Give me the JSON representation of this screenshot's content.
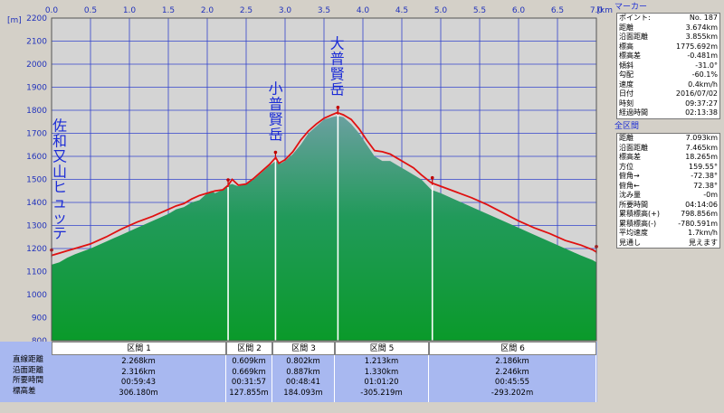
{
  "chart_data": {
    "type": "area",
    "xlabel": "[km]",
    "ylabel": "[m]",
    "xlim": [
      0,
      7.0
    ],
    "ylim": [
      800,
      2200
    ],
    "x_ticks": [
      "0.0",
      "0.5",
      "1.0",
      "1.5",
      "2.0",
      "2.5",
      "3.0",
      "3.5",
      "4.0",
      "4.5",
      "5.0",
      "5.5",
      "6.0",
      "6.5",
      "7.0"
    ],
    "y_ticks": [
      "800",
      "900",
      "1000",
      "1100",
      "1200",
      "1300",
      "1400",
      "1500",
      "1600",
      "1700",
      "1800",
      "1900",
      "2000",
      "2100",
      "2200"
    ],
    "grid": true,
    "series": [
      {
        "type": "area",
        "x": [
          0.0,
          0.1,
          0.2,
          0.3,
          0.5,
          0.7,
          0.9,
          1.1,
          1.3,
          1.5,
          1.6,
          1.7,
          1.8,
          1.9,
          2.0,
          2.05,
          2.1,
          2.2,
          2.27,
          2.32,
          2.4,
          2.5,
          2.6,
          2.7,
          2.8,
          2.88,
          2.95,
          3.0,
          3.1,
          3.2,
          3.3,
          3.4,
          3.5,
          3.6,
          3.67,
          3.75,
          3.85,
          3.95,
          4.05,
          4.15,
          4.25,
          4.35,
          4.45,
          4.55,
          4.65,
          4.75,
          4.88,
          5.0,
          5.2,
          5.4,
          5.6,
          5.8,
          6.0,
          6.2,
          6.4,
          6.6,
          6.8,
          6.95,
          7.0
        ],
        "y": [
          1130,
          1140,
          1160,
          1175,
          1200,
          1230,
          1260,
          1290,
          1320,
          1350,
          1370,
          1380,
          1400,
          1410,
          1440,
          1450,
          1440,
          1455,
          1475,
          1480,
          1470,
          1480,
          1500,
          1530,
          1560,
          1580,
          1570,
          1580,
          1610,
          1650,
          1700,
          1730,
          1760,
          1770,
          1775,
          1770,
          1740,
          1700,
          1650,
          1600,
          1580,
          1580,
          1560,
          1540,
          1520,
          1500,
          1455,
          1440,
          1410,
          1380,
          1350,
          1320,
          1290,
          1260,
          1230,
          1200,
          1170,
          1150,
          1140
        ]
      },
      {
        "type": "line",
        "color": "#e01010",
        "x": [
          0.0,
          0.1,
          0.2,
          0.3,
          0.5,
          0.7,
          0.9,
          1.1,
          1.3,
          1.5,
          1.6,
          1.7,
          1.8,
          1.9,
          2.0,
          2.1,
          2.2,
          2.27,
          2.32,
          2.4,
          2.5,
          2.6,
          2.7,
          2.8,
          2.88,
          2.92,
          3.0,
          3.1,
          3.2,
          3.3,
          3.4,
          3.5,
          3.6,
          3.67,
          3.75,
          3.85,
          3.95,
          4.05,
          4.15,
          4.25,
          4.35,
          4.45,
          4.55,
          4.65,
          4.75,
          4.88,
          5.0,
          5.2,
          5.4,
          5.6,
          5.8,
          6.0,
          6.2,
          6.4,
          6.6,
          6.8,
          6.95,
          7.0
        ],
        "y": [
          1170,
          1180,
          1190,
          1200,
          1220,
          1250,
          1285,
          1315,
          1340,
          1370,
          1385,
          1395,
          1415,
          1430,
          1440,
          1450,
          1455,
          1475,
          1500,
          1475,
          1480,
          1505,
          1535,
          1565,
          1595,
          1570,
          1585,
          1620,
          1670,
          1710,
          1740,
          1765,
          1780,
          1790,
          1780,
          1760,
          1720,
          1670,
          1625,
          1620,
          1610,
          1590,
          1570,
          1550,
          1520,
          1485,
          1470,
          1445,
          1420,
          1390,
          1355,
          1320,
          1290,
          1265,
          1235,
          1215,
          1195,
          1185
        ]
      }
    ],
    "peaks": [
      {
        "label": "佐和又山ヒュッテ",
        "x": 0.0,
        "y": 1175
      },
      {
        "label": "小普賢岳",
        "x": 2.88,
        "y": 1595
      },
      {
        "label": "大普賢岳",
        "x": 3.67,
        "y": 1790
      }
    ],
    "markers_x": [
      0.0,
      2.268,
      2.877,
      3.679,
      4.892,
      7.0
    ]
  },
  "segments_table": {
    "row_labels": [
      "直線距離",
      "沿面距離",
      "所要時間",
      "標高差"
    ],
    "segments": [
      {
        "name": "区間 1",
        "values": [
          "2.268km",
          "2.316km",
          "00:59:43",
          "306.180m"
        ]
      },
      {
        "name": "区間 2",
        "values": [
          "0.609km",
          "0.669km",
          "00:31:57",
          "127.855m"
        ]
      },
      {
        "name": "区間 3",
        "values": [
          "0.802km",
          "0.887km",
          "00:48:41",
          "184.093m"
        ]
      },
      {
        "name": "区間 5",
        "values": [
          "1.213km",
          "1.330km",
          "01:01:20",
          "-305.219m"
        ]
      },
      {
        "name": "区間 6",
        "values": [
          "2.186km",
          "2.246km",
          "00:45:55",
          "-293.202m"
        ]
      }
    ]
  },
  "marker_panel": {
    "title": "マーカー",
    "rows": [
      [
        "ポイント:",
        "No. 187"
      ],
      [
        "距離",
        "3.674km"
      ],
      [
        "沿面距離",
        "3.855km"
      ],
      [
        "標高",
        "1775.692m"
      ],
      [
        "標高差",
        "-0.481m"
      ],
      [
        "傾斜",
        "-31.0°"
      ],
      [
        "勾配",
        "-60.1%"
      ],
      [
        "速度",
        "0.4km/h"
      ],
      [
        "日付",
        "2016/07/02"
      ],
      [
        "時刻",
        "09:37:27"
      ],
      [
        "経過時間",
        "02:13:38"
      ]
    ]
  },
  "all_panel": {
    "title": "全区間",
    "rows": [
      [
        "距離",
        "7.093km"
      ],
      [
        "沿面距離",
        "7.465km"
      ],
      [
        "標高差",
        "18.265m"
      ],
      [
        "方位",
        "159.55°"
      ],
      [
        "俯角→",
        "-72.38°"
      ],
      [
        "俯角←",
        "72.38°"
      ],
      [
        "沈み量",
        "-0m"
      ],
      [
        "所要時間",
        "04:14:06"
      ],
      [
        "累積標高(+)",
        "798.856m"
      ],
      [
        "累積標高(-)",
        "-780.591m"
      ],
      [
        "平均速度",
        "1.7km/h"
      ],
      [
        "見通し",
        "見えます"
      ]
    ]
  }
}
